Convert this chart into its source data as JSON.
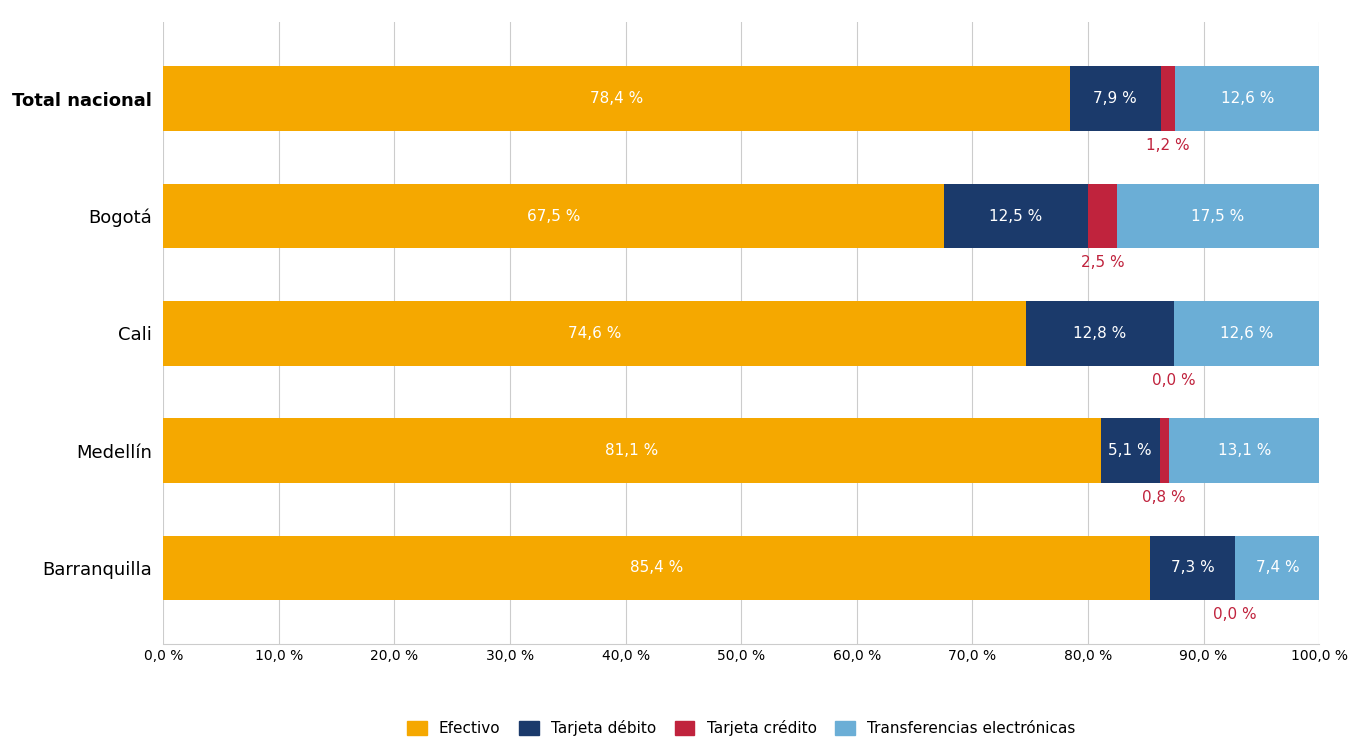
{
  "categories": [
    "Total nacional",
    "Bogotá",
    "Cali",
    "Medellín",
    "Barranquilla"
  ],
  "efectivo": [
    78.4,
    67.5,
    74.6,
    81.1,
    85.4
  ],
  "debito": [
    7.9,
    12.5,
    12.8,
    5.1,
    7.3
  ],
  "credito": [
    1.2,
    2.5,
    0.0,
    0.8,
    0.0
  ],
  "transferencias": [
    12.6,
    17.5,
    12.6,
    13.1,
    7.4
  ],
  "color_efectivo": "#F5A800",
  "color_debito": "#1B3A6B",
  "color_credito": "#C0233D",
  "color_transferencias": "#6BAED6",
  "label_efectivo": "Efectivo",
  "label_debito": "Tarjeta débito",
  "label_credito": "Tarjeta crédito",
  "label_transferencias": "Transferencias electrónicas",
  "bar_height": 0.55,
  "xlim": [
    0,
    100
  ],
  "xticks": [
    0,
    10,
    20,
    30,
    40,
    50,
    60,
    70,
    80,
    90,
    100
  ],
  "bg_color": "#FFFFFF",
  "grid_color": "#CCCCCC",
  "label_fontsize": 11,
  "tick_fontsize": 10,
  "bar_label_fontsize": 11,
  "credito_label_fontsize": 11,
  "category_fontsize": 13
}
